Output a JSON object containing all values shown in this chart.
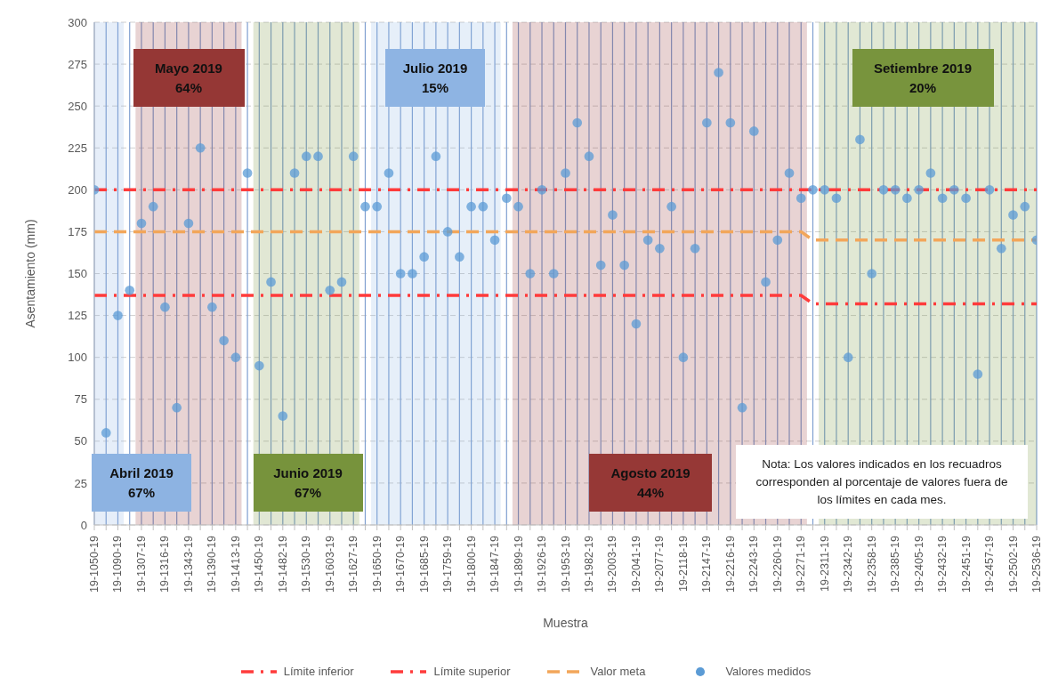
{
  "chart_data": {
    "type": "scatter",
    "xlabel": "Muestra",
    "ylabel": "Asentamiento (mm)",
    "categories": [
      "19-1050-19",
      null,
      "19-1090-19",
      null,
      "19-1307-19",
      null,
      "19-1316-19",
      null,
      "19-1343-19",
      null,
      "19-1390-19",
      null,
      "19-1413-19",
      null,
      "19-1450-19",
      null,
      "19-1482-19",
      null,
      "19-1530-19",
      null,
      "19-1603-19",
      null,
      "19-1627-19",
      null,
      "19-1650-19",
      null,
      "19-1670-19",
      null,
      "19-1685-19",
      null,
      "19-1759-19",
      null,
      "19-1800-19",
      null,
      "19-1847-19",
      null,
      "19-1899-19",
      null,
      "19-1926-19",
      null,
      "19-1953-19",
      null,
      "19-1982-19",
      null,
      "19-2003-19",
      null,
      "19-2041-19",
      null,
      "19-2077-19",
      null,
      "19-2118-19",
      null,
      "19-2147-19",
      null,
      "19-2216-19",
      null,
      "19-2243-19",
      null,
      "19-2260-19",
      null,
      "19-2271-19",
      null,
      "19-2311-19",
      null,
      "19-2342-19",
      null,
      "19-2358-19",
      null,
      "19-2385-19",
      null,
      "19-2405-19",
      null,
      "19-2432-19",
      null,
      "19-2451-19",
      null,
      "19-2457-19",
      null,
      "19-2502-19",
      null,
      "19-2536-19"
    ],
    "ylim": [
      0,
      300
    ],
    "yticks": [
      0,
      25,
      50,
      75,
      100,
      125,
      150,
      175,
      200,
      225,
      250,
      275,
      300
    ],
    "grid": true,
    "legend": "bottom",
    "series": [
      {
        "name": "Límite inferior",
        "type": "line",
        "line_style": "dashdot",
        "color": "#ff3b3b",
        "values": [
          137,
          137,
          137,
          137,
          137,
          137,
          137,
          137,
          137,
          137,
          137,
          137,
          137,
          137,
          137,
          137,
          137,
          137,
          137,
          137,
          137,
          137,
          137,
          137,
          137,
          137,
          137,
          137,
          137,
          137,
          137,
          137,
          137,
          137,
          137,
          137,
          137,
          137,
          137,
          137,
          137,
          137,
          137,
          137,
          137,
          137,
          137,
          137,
          137,
          137,
          137,
          137,
          137,
          137,
          137,
          137,
          137,
          137,
          137,
          137,
          137,
          132,
          132,
          132,
          132,
          132,
          132,
          132,
          132,
          132,
          132,
          132,
          132,
          132,
          132,
          132,
          132,
          132,
          132,
          132,
          132
        ]
      },
      {
        "name": "Límite superior",
        "type": "line",
        "line_style": "dashdot",
        "color": "#ff3b3b",
        "values": [
          200,
          200,
          200,
          200,
          200,
          200,
          200,
          200,
          200,
          200,
          200,
          200,
          200,
          200,
          200,
          200,
          200,
          200,
          200,
          200,
          200,
          200,
          200,
          200,
          200,
          200,
          200,
          200,
          200,
          200,
          200,
          200,
          200,
          200,
          200,
          200,
          200,
          200,
          200,
          200,
          200,
          200,
          200,
          200,
          200,
          200,
          200,
          200,
          200,
          200,
          200,
          200,
          200,
          200,
          200,
          200,
          200,
          200,
          200,
          200,
          200,
          200,
          200,
          200,
          200,
          200,
          200,
          200,
          200,
          200,
          200,
          200,
          200,
          200,
          200,
          200,
          200,
          200,
          200,
          200,
          200
        ]
      },
      {
        "name": "Valor meta",
        "type": "line",
        "line_style": "dashed",
        "color": "#f2a65a",
        "values": [
          175,
          175,
          175,
          175,
          175,
          175,
          175,
          175,
          175,
          175,
          175,
          175,
          175,
          175,
          175,
          175,
          175,
          175,
          175,
          175,
          175,
          175,
          175,
          175,
          175,
          175,
          175,
          175,
          175,
          175,
          175,
          175,
          175,
          175,
          175,
          175,
          175,
          175,
          175,
          175,
          175,
          175,
          175,
          175,
          175,
          175,
          175,
          175,
          175,
          175,
          175,
          175,
          175,
          175,
          175,
          175,
          175,
          175,
          175,
          175,
          175,
          170,
          170,
          170,
          170,
          170,
          170,
          170,
          170,
          170,
          170,
          170,
          170,
          170,
          170,
          170,
          170,
          170,
          170,
          170,
          170
        ]
      },
      {
        "name": "Valores medidos",
        "color": "#5b9bd5",
        "marker": "circle",
        "values": [
          200,
          55,
          125,
          140,
          180,
          190,
          130,
          70,
          180,
          225,
          130,
          110,
          100,
          210,
          95,
          145,
          65,
          210,
          220,
          220,
          140,
          145,
          220,
          190,
          190,
          210,
          150,
          150,
          160,
          220,
          175,
          160,
          190,
          190,
          170,
          195,
          190,
          150,
          200,
          150,
          210,
          240,
          220,
          155,
          185,
          155,
          120,
          170,
          165,
          190,
          100,
          165,
          240,
          270,
          240,
          70,
          235,
          145,
          170,
          210,
          195,
          200,
          200,
          195,
          100,
          230,
          150,
          200,
          200,
          195,
          200,
          210,
          195,
          200,
          195,
          90,
          200,
          165,
          185,
          190,
          170
        ]
      }
    ],
    "bands": [
      {
        "axis": "x",
        "from": "19-1050-19",
        "to": "19-1090-19",
        "label": "Abril 2019 67%",
        "color": "#8db3e2"
      },
      {
        "axis": "x",
        "from": "19-1307-19",
        "to": "19-1413-19",
        "label": "Mayo 2019 64%",
        "color": "#953735"
      },
      {
        "axis": "x",
        "from": "19-1450-19",
        "to": "19-1627-19",
        "label": "Junio 2019 67%",
        "color": "#77933c"
      },
      {
        "axis": "x",
        "from": "19-1650-19",
        "to": "19-1847-19",
        "label": "Julio 2019 15%",
        "color": "#8eb4e3"
      },
      {
        "axis": "x",
        "from": "19-1899-19",
        "to": "19-2271-19",
        "label": "Agosto 2019 44%",
        "color": "#963836"
      },
      {
        "axis": "x",
        "from": "19-2311-19",
        "to": "19-2536-19",
        "label": "Setiembre 2019 20%",
        "color": "#78943d"
      }
    ],
    "annotations": [
      "Nota: Los valores indicados en los recuadros corresponden al porcentaje de valores fuera de los límites en cada mes."
    ]
  }
}
